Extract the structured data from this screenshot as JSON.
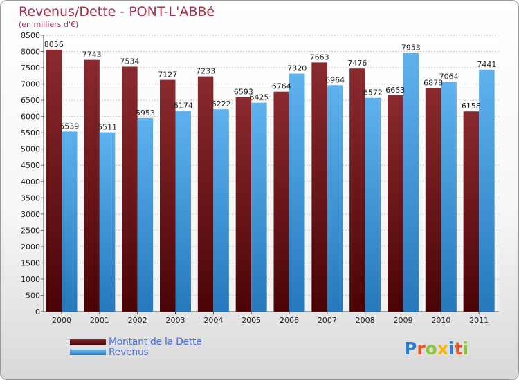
{
  "chart_data": {
    "type": "bar",
    "title": "Revenus/Dette - PONT-L'ABBé",
    "subtitle": "(en milliers d'€)",
    "categories": [
      "2000",
      "2001",
      "2002",
      "2003",
      "2004",
      "2005",
      "2006",
      "2007",
      "2008",
      "2009",
      "2010",
      "2011"
    ],
    "series": [
      {
        "name": "Montant de la Dette",
        "color": "#7b1e22",
        "values": [
          8056,
          7743,
          7534,
          7127,
          7233,
          6593,
          6764,
          7663,
          7476,
          6653,
          6878,
          6158
        ]
      },
      {
        "name": "Revenus",
        "color": "#55a8e8",
        "values": [
          5539,
          5511,
          5953,
          6174,
          6222,
          6425,
          7320,
          6964,
          6572,
          7953,
          7064,
          7441
        ]
      }
    ],
    "ylim": [
      0,
      8500
    ],
    "yticks": [
      0,
      500,
      1000,
      1500,
      2000,
      2500,
      3000,
      3500,
      4000,
      4500,
      5000,
      5500,
      6000,
      6500,
      7000,
      7500,
      8000,
      8500
    ],
    "grid": true,
    "legend": "bottom-left"
  },
  "logo": {
    "text": "Proxiti",
    "colors": [
      "#2f7fd0",
      "#e8542a",
      "#8cc63f",
      "#f2b705",
      "#2f7fd0",
      "#e8542a",
      "#8cc63f"
    ]
  }
}
